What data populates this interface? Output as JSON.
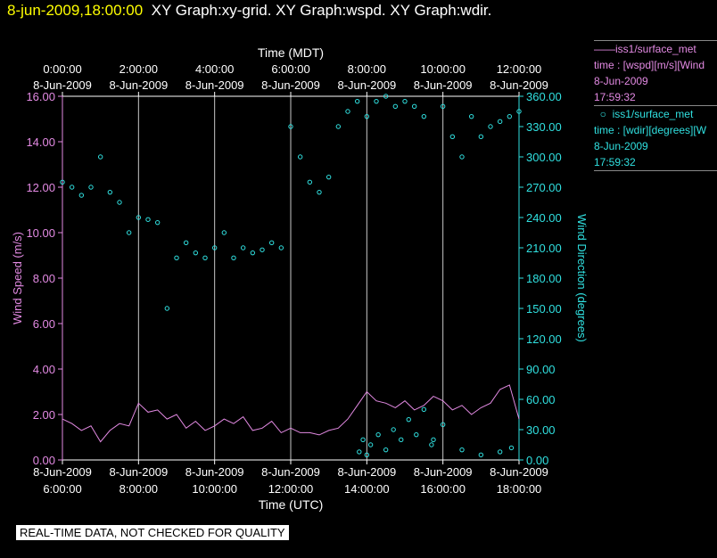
{
  "header": {
    "timestamp": "8-jun-2009,18:00:00",
    "graphs": "XY Graph:xy-grid.  XY Graph:wspd.  XY Graph:wdir."
  },
  "top_axis": {
    "title": "Time (MDT)",
    "ticks": [
      {
        "time": "0:00:00",
        "date": "8-Jun-2009"
      },
      {
        "time": "2:00:00",
        "date": "8-Jun-2009"
      },
      {
        "time": "4:00:00",
        "date": "8-Jun-2009"
      },
      {
        "time": "6:00:00",
        "date": "8-Jun-2009"
      },
      {
        "time": "8:00:00",
        "date": "8-Jun-2009"
      },
      {
        "time": "10:00:00",
        "date": "8-Jun-2009"
      },
      {
        "time": "12:00:00",
        "date": "8-Jun-2009"
      }
    ]
  },
  "bottom_axis": {
    "title": "Time (UTC)",
    "ticks": [
      {
        "date": "8-Jun-2009",
        "time": "6:00:00"
      },
      {
        "date": "8-Jun-2009",
        "time": "8:00:00"
      },
      {
        "date": "8-Jun-2009",
        "time": "10:00:00"
      },
      {
        "date": "8-Jun-2009",
        "time": "12:00:00"
      },
      {
        "date": "8-Jun-2009",
        "time": "14:00:00"
      },
      {
        "date": "8-Jun-2009",
        "time": "16:00:00"
      },
      {
        "date": "8-Jun-2009",
        "time": "18:00:00"
      }
    ]
  },
  "left_axis": {
    "title": "Wind Speed (m/s)",
    "ticks": [
      "0.00",
      "2.00",
      "4.00",
      "6.00",
      "8.00",
      "10.00",
      "12.00",
      "14.00",
      "16.00"
    ]
  },
  "right_axis": {
    "title": "Wind Direction (degrees)",
    "ticks": [
      "0.00",
      "30.00",
      "60.00",
      "90.00",
      "120.00",
      "150.00",
      "180.00",
      "210.00",
      "240.00",
      "270.00",
      "300.00",
      "330.00",
      "360.00"
    ]
  },
  "legend": {
    "wspd": {
      "name": "iss1/surface_met",
      "var": "time : [wspd][m/s][Wind",
      "date": "8-Jun-2009",
      "time": "17:59:32"
    },
    "wdir": {
      "name": "iss1/surface_met",
      "var": "time : [wdir][degrees][W",
      "date": "8-Jun-2009",
      "time": "17:59:32"
    }
  },
  "quality_note": "REAL-TIME DATA, NOT CHECKED FOR QUALITY",
  "colors": {
    "wspd": "#e38ae3",
    "wdir": "#30e0e0",
    "axis": "#ffffff",
    "title_timestamp": "#ffff00"
  },
  "chart_data": {
    "type": "line",
    "x_axis": "Time (UTC), hours on 8-Jun-2009",
    "xlim": [
      6,
      18
    ],
    "y_left": {
      "label": "Wind Speed (m/s)",
      "ylim": [
        0,
        16
      ]
    },
    "y_right": {
      "label": "Wind Direction (degrees)",
      "ylim": [
        0,
        360
      ]
    },
    "grid": "vertical lines at tick positions",
    "series": [
      {
        "name": "iss1/surface_met",
        "var": "wspd",
        "style": "line",
        "axis": "left",
        "x": [
          6.0,
          6.25,
          6.5,
          6.75,
          7.0,
          7.25,
          7.5,
          7.75,
          8.0,
          8.25,
          8.5,
          8.75,
          9.0,
          9.25,
          9.5,
          9.75,
          10.0,
          10.25,
          10.5,
          10.75,
          11.0,
          11.25,
          11.5,
          11.75,
          12.0,
          12.25,
          12.5,
          12.75,
          13.0,
          13.25,
          13.5,
          13.75,
          14.0,
          14.25,
          14.5,
          14.75,
          15.0,
          15.25,
          15.5,
          15.75,
          16.0,
          16.25,
          16.5,
          16.75,
          17.0,
          17.25,
          17.5,
          17.75,
          18.0
        ],
        "y": [
          1.8,
          1.6,
          1.3,
          1.5,
          0.8,
          1.3,
          1.6,
          1.5,
          2.5,
          2.1,
          2.2,
          1.8,
          2.0,
          1.4,
          1.7,
          1.3,
          1.5,
          1.8,
          1.6,
          1.9,
          1.3,
          1.4,
          1.7,
          1.2,
          1.4,
          1.2,
          1.2,
          1.1,
          1.3,
          1.4,
          1.8,
          2.4,
          3.0,
          2.6,
          2.5,
          2.3,
          2.6,
          2.2,
          2.4,
          2.8,
          2.6,
          2.2,
          2.4,
          2.0,
          2.3,
          2.5,
          3.1,
          3.3,
          1.8
        ]
      },
      {
        "name": "iss1/surface_met",
        "var": "wdir",
        "style": "scatter",
        "axis": "right",
        "x": [
          6.0,
          6.25,
          6.5,
          6.75,
          7.0,
          7.25,
          7.5,
          7.75,
          8.0,
          8.25,
          8.5,
          8.75,
          9.0,
          9.25,
          9.5,
          9.75,
          10.0,
          10.25,
          10.5,
          10.75,
          11.0,
          11.25,
          11.5,
          11.75,
          12.0,
          12.25,
          12.5,
          12.75,
          13.0,
          13.25,
          13.5,
          13.75,
          14.0,
          14.25,
          14.5,
          14.75,
          15.0,
          15.25,
          15.5,
          15.75,
          16.0,
          16.25,
          16.5,
          16.75,
          17.0,
          17.25,
          17.5,
          17.75,
          18.0
        ],
        "y": [
          275,
          270,
          262,
          270,
          300,
          265,
          255,
          225,
          240,
          238,
          235,
          150,
          200,
          215,
          205,
          200,
          210,
          225,
          200,
          210,
          205,
          208,
          215,
          210,
          330,
          300,
          275,
          265,
          280,
          330,
          345,
          355,
          340,
          355,
          360,
          350,
          355,
          350,
          340,
          20,
          350,
          320,
          300,
          340,
          320,
          330,
          335,
          340,
          345
        ]
      },
      {
        "name": "iss1/surface_met",
        "var": "wdir",
        "style": "scatter",
        "axis": "right",
        "note": "low-angle (northerly) readings",
        "x": [
          13.8,
          13.9,
          14.0,
          14.1,
          14.3,
          14.5,
          14.7,
          14.9,
          15.1,
          15.3,
          15.5,
          15.7,
          16.0,
          16.5,
          17.0,
          17.5,
          17.8
        ],
        "y": [
          8,
          20,
          5,
          15,
          25,
          10,
          30,
          20,
          40,
          25,
          50,
          15,
          35,
          10,
          5,
          8,
          12
        ]
      }
    ]
  }
}
